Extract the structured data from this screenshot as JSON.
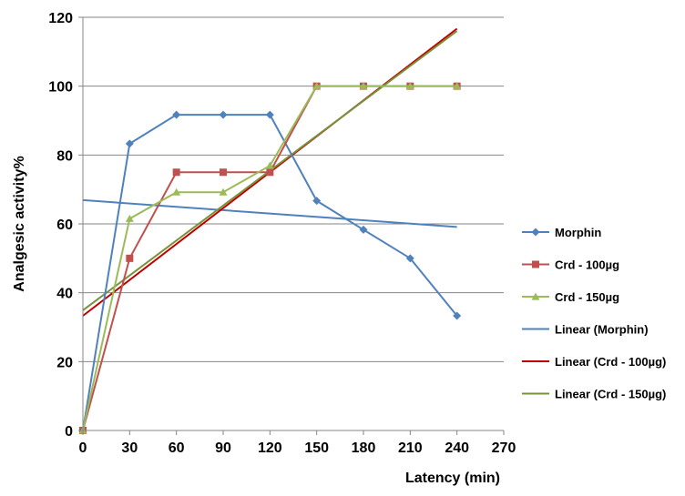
{
  "chart_data": {
    "type": "line",
    "xlabel": "Latency (min)",
    "ylabel": "Analgesic activity%",
    "xlim": [
      0,
      270
    ],
    "ylim": [
      0,
      120
    ],
    "xticks": [
      0,
      30,
      60,
      90,
      120,
      150,
      180,
      210,
      240,
      270
    ],
    "yticks": [
      0,
      20,
      40,
      60,
      80,
      100,
      120
    ],
    "grid": "horizontal",
    "legend_position": "right",
    "x": [
      0,
      30,
      60,
      90,
      120,
      150,
      180,
      210,
      240
    ],
    "series": [
      {
        "name": "Morphin",
        "color": "#4F81BD",
        "marker": "diamond",
        "values": [
          0,
          83.3,
          91.7,
          91.7,
          91.7,
          66.7,
          58.3,
          50,
          33.3
        ]
      },
      {
        "name": "Crd - 100µg",
        "color": "#C0504D",
        "marker": "square",
        "values": [
          0,
          50,
          75,
          75,
          75,
          100,
          100,
          100,
          100
        ]
      },
      {
        "name": "Crd - 150µg",
        "color": "#9BBB59",
        "marker": "triangle",
        "values": [
          0,
          61.5,
          69.2,
          69.2,
          76.9,
          100,
          100,
          100,
          100
        ]
      }
    ],
    "trendlines": [
      {
        "name": "Linear (Morphin)",
        "color": "#4F81BD",
        "x": [
          0,
          240
        ],
        "y": [
          66.9,
          59.1
        ]
      },
      {
        "name": "Linear (Crd - 100µg)",
        "color": "#C00000",
        "x": [
          0,
          240
        ],
        "y": [
          33.3,
          116.7
        ]
      },
      {
        "name": "Linear (Crd - 150µg)",
        "color": "#77933C",
        "x": [
          0,
          240
        ],
        "y": [
          34.9,
          116
        ]
      }
    ]
  }
}
